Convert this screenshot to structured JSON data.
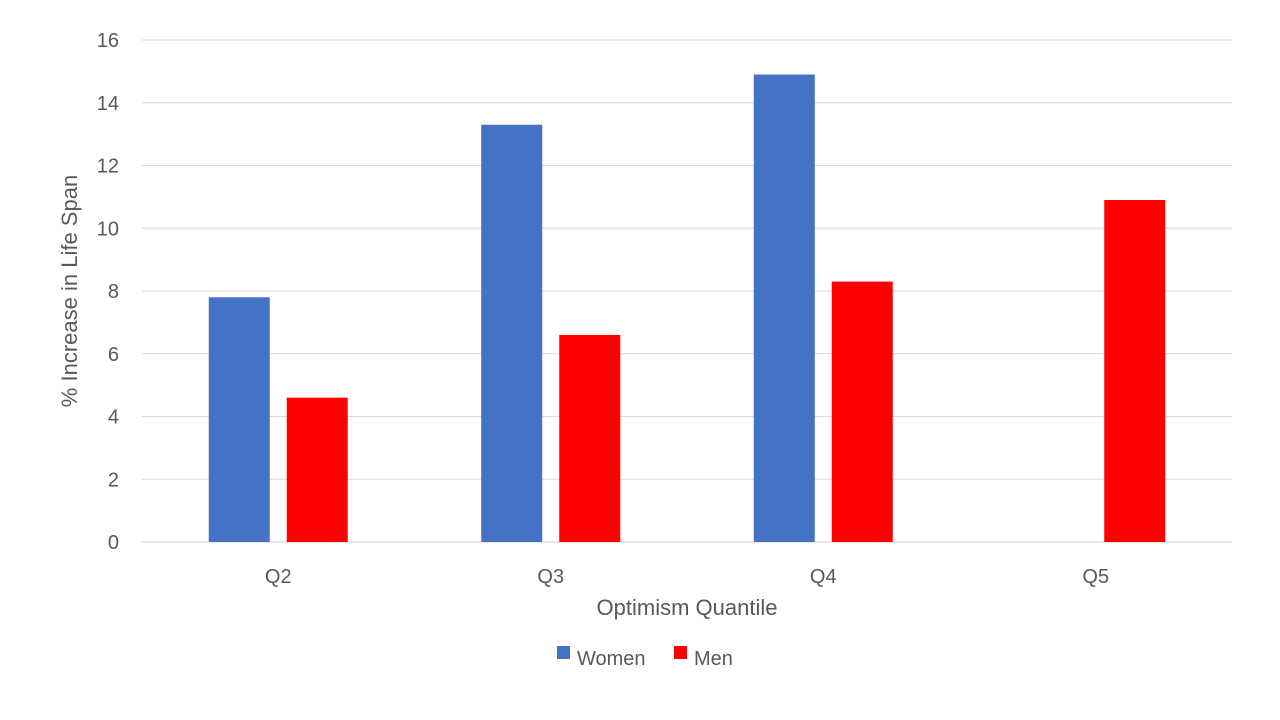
{
  "chart_data": {
    "type": "bar",
    "title": "",
    "xlabel": "Optimism Quantile",
    "ylabel": "% Increase in Life Span",
    "categories": [
      "Q2",
      "Q3",
      "Q4",
      "Q5"
    ],
    "series": [
      {
        "name": "Women",
        "color": "#4472C4",
        "values": [
          7.8,
          13.3,
          14.9,
          null
        ]
      },
      {
        "name": "Men",
        "color": "#FF0000",
        "values": [
          4.6,
          6.6,
          8.3,
          10.9
        ]
      }
    ],
    "ylim": [
      0,
      16
    ],
    "yticks": [
      0,
      2,
      4,
      6,
      8,
      10,
      12,
      14,
      16
    ],
    "grid": true,
    "legend_position": "bottom"
  }
}
